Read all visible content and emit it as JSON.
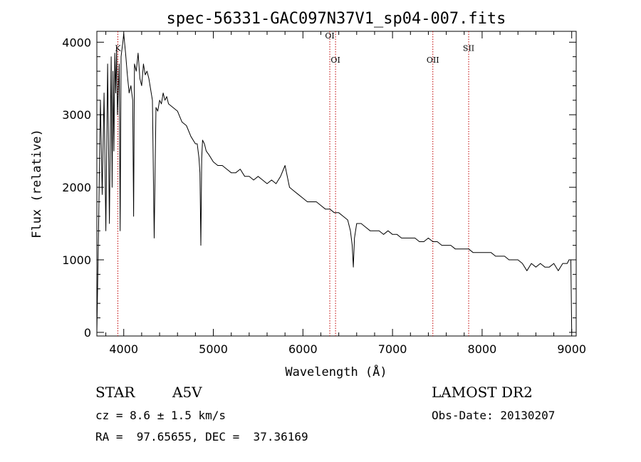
{
  "chart_data": {
    "type": "line",
    "title": "spec-56331-GAC097N37V1_sp04-007.fits",
    "xlabel": "Wavelength (Å)",
    "ylabel": "Flux (relative)",
    "xlim": [
      3700,
      9050
    ],
    "ylim": [
      -50,
      4150
    ],
    "xticks": [
      4000,
      5000,
      6000,
      7000,
      8000,
      9000
    ],
    "yticks": [
      0,
      1000,
      2000,
      3000,
      4000
    ],
    "line_color": "#000000",
    "marker_color": "#c00000",
    "spectrum": {
      "x": [
        3700,
        3720,
        3740,
        3760,
        3780,
        3800,
        3820,
        3840,
        3860,
        3870,
        3880,
        3890,
        3900,
        3910,
        3920,
        3930,
        3950,
        3960,
        3970,
        3980,
        3990,
        4000,
        4020,
        4040,
        4060,
        4080,
        4100,
        4110,
        4120,
        4140,
        4160,
        4180,
        4200,
        4220,
        4240,
        4260,
        4280,
        4300,
        4320,
        4340,
        4360,
        4380,
        4400,
        4420,
        4440,
        4460,
        4480,
        4500,
        4550,
        4600,
        4650,
        4700,
        4750,
        4800,
        4820,
        4840,
        4850,
        4861,
        4870,
        4880,
        4900,
        4920,
        4950,
        5000,
        5050,
        5100,
        5150,
        5200,
        5250,
        5300,
        5350,
        5400,
        5450,
        5500,
        5550,
        5600,
        5650,
        5700,
        5750,
        5800,
        5850,
        5900,
        5950,
        6000,
        6050,
        6100,
        6150,
        6200,
        6250,
        6300,
        6350,
        6400,
        6450,
        6500,
        6530,
        6550,
        6563,
        6575,
        6600,
        6650,
        6700,
        6750,
        6800,
        6850,
        6900,
        6950,
        7000,
        7050,
        7100,
        7150,
        7200,
        7250,
        7300,
        7350,
        7400,
        7450,
        7500,
        7550,
        7600,
        7650,
        7700,
        7750,
        7800,
        7850,
        7900,
        7950,
        8000,
        8050,
        8100,
        8150,
        8200,
        8250,
        8300,
        8350,
        8400,
        8450,
        8500,
        8550,
        8600,
        8650,
        8700,
        8750,
        8800,
        8850,
        8900,
        8950,
        8970,
        8990,
        9000
      ],
      "y": [
        0,
        1500,
        3200,
        1900,
        3300,
        1400,
        3700,
        1500,
        3800,
        2000,
        3600,
        2500,
        3850,
        3300,
        3900,
        3000,
        3700,
        1400,
        3800,
        3900,
        4000,
        4120,
        3850,
        3550,
        3300,
        3400,
        3200,
        1600,
        3700,
        3600,
        3850,
        3500,
        3400,
        3700,
        3550,
        3600,
        3500,
        3350,
        3200,
        1300,
        3100,
        3050,
        3200,
        3150,
        3300,
        3200,
        3250,
        3150,
        3100,
        3050,
        2900,
        2850,
        2700,
        2600,
        2600,
        2400,
        2200,
        1200,
        2400,
        2650,
        2600,
        2500,
        2450,
        2350,
        2300,
        2300,
        2250,
        2200,
        2200,
        2250,
        2150,
        2150,
        2100,
        2150,
        2100,
        2050,
        2100,
        2050,
        2150,
        2300,
        2000,
        1950,
        1900,
        1850,
        1800,
        1800,
        1800,
        1750,
        1700,
        1700,
        1650,
        1650,
        1600,
        1550,
        1400,
        1200,
        900,
        1300,
        1500,
        1500,
        1450,
        1400,
        1400,
        1400,
        1350,
        1400,
        1350,
        1350,
        1300,
        1300,
        1300,
        1300,
        1250,
        1250,
        1300,
        1250,
        1250,
        1200,
        1200,
        1200,
        1150,
        1150,
        1150,
        1150,
        1100,
        1100,
        1100,
        1100,
        1100,
        1050,
        1050,
        1050,
        1000,
        1000,
        1000,
        950,
        850,
        950,
        900,
        950,
        900,
        900,
        950,
        850,
        950,
        950,
        1000,
        1000,
        0
      ]
    },
    "markers": [
      {
        "label": "K",
        "x": 3934,
        "label_y": 3880
      },
      {
        "label": "OI",
        "x": 6300,
        "label_y": 4050
      },
      {
        "label": "OI",
        "x": 6364,
        "label_y": 3720
      },
      {
        "label": "OII",
        "x": 7450,
        "label_y": 3720
      },
      {
        "label": "SII",
        "x": 7850,
        "label_y": 3880
      }
    ]
  },
  "info": {
    "object_class": "STAR",
    "subclass": "A5V",
    "survey": "LAMOST DR2",
    "cz": "cz = 8.6 ± 1.5 km/s",
    "obs_date": "Obs-Date: 20130207",
    "coords": "RA =  97.65655, DEC =  37.36169"
  }
}
